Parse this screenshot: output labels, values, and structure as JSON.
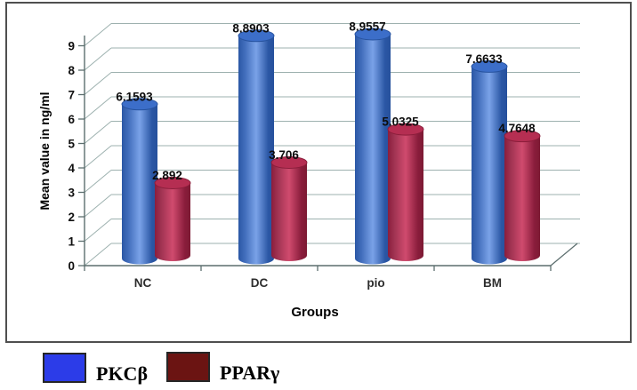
{
  "chart_data": {
    "type": "bar",
    "style": "3d-cylinder",
    "categories": [
      "NC",
      "DC",
      "pio",
      "BM"
    ],
    "series": [
      {
        "name": "PKCβ",
        "values": [
          6.1593,
          8.8903,
          8.9557,
          7.6633
        ],
        "value_labels": [
          "6.1593",
          "8.8903",
          "8.9557",
          "7.6633"
        ],
        "bar_color_edge": "#2b57a5",
        "bar_color_mid": "#7aa2e8",
        "bar_color_edge2": "#26509c",
        "top_color": "#3c6ec9",
        "top_stroke": "#27539f"
      },
      {
        "name": "PPARγ",
        "values": [
          2.892,
          3.706,
          5.0325,
          4.7648
        ],
        "value_labels": [
          "2.892",
          "3.706",
          "5.0325",
          "4.7648"
        ],
        "bar_color_edge": "#8a1d3c",
        "bar_color_mid": "#d04b6e",
        "bar_color_edge2": "#7c1a33",
        "top_color": "#b52e52",
        "top_stroke": "#8a1d3a"
      }
    ],
    "xlabel": "Groups",
    "ylabel": "Mean value in ng/ml",
    "ylim": [
      0,
      9
    ],
    "ytick_step": 1,
    "yticks": [
      0,
      1,
      2,
      3,
      4,
      5,
      6,
      7,
      8,
      9
    ],
    "grid": true,
    "legend_position": "bottom",
    "grid_color": "#9db1af",
    "axis_color": "#5c6e6e"
  },
  "legend": {
    "items": [
      {
        "label": "PKCβ",
        "swatch_color": "#2c3ce8"
      },
      {
        "label": "PPARγ",
        "swatch_color": "#6b1412"
      }
    ]
  }
}
